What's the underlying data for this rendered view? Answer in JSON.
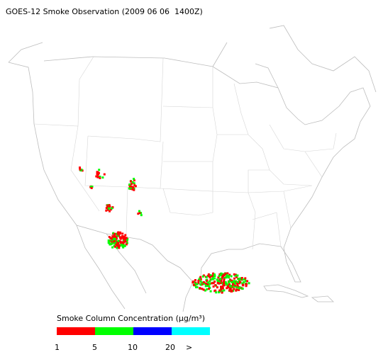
{
  "title": "GOES-12 Smoke Observation (2009 06 06  1400Z)",
  "legend": {
    "label": "Smoke Column Concentration (μg/m³)",
    "colors": [
      "#ff0000",
      "#00ff00",
      "#0000ff",
      "#00ffff"
    ],
    "ticks": [
      "1",
      "5",
      "10",
      "20",
      ">"
    ]
  }
}
